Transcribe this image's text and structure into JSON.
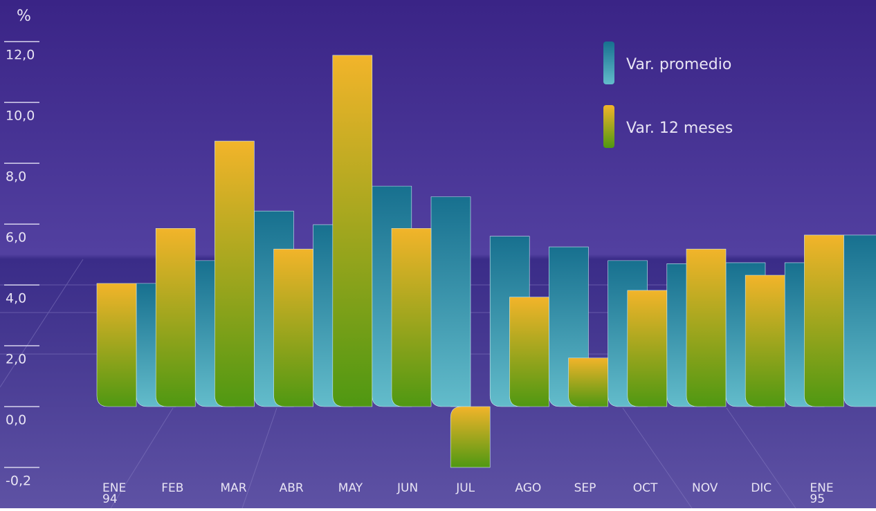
{
  "chart_data": {
    "type": "bar",
    "y_label": "%",
    "categories": [
      "ENE 94",
      "FEB",
      "MAR",
      "ABR",
      "MAY",
      "JUN",
      "JUL",
      "AGO",
      "SEP",
      "OCT",
      "NOV",
      "DIC",
      "ENE 95"
    ],
    "series": [
      {
        "name": "Var. 12 meses",
        "color": "#f2b42a",
        "values": [
          4.05,
          5.86,
          8.73,
          5.18,
          11.55,
          5.86,
          -0.2,
          3.6,
          1.6,
          3.82,
          5.18,
          4.32,
          5.64
        ]
      },
      {
        "name": "Var. promedio",
        "color": "#17708f",
        "values": [
          4.05,
          4.8,
          6.43,
          5.98,
          7.25,
          6.9,
          5.6,
          5.25,
          4.8,
          4.7,
          4.73,
          4.73,
          5.64
        ]
      }
    ],
    "ylim": [
      -0.2,
      12.8
    ],
    "yticks": [
      {
        "value": -0.2,
        "label": "-0,2"
      },
      {
        "value": 0,
        "label": "0,0"
      },
      {
        "value": 2,
        "label": "2,0"
      },
      {
        "value": 4,
        "label": "4,0"
      },
      {
        "value": 6,
        "label": "6,0"
      },
      {
        "value": 8,
        "label": "8,0"
      },
      {
        "value": 10,
        "label": "10,0"
      },
      {
        "value": 12,
        "label": "12,0"
      }
    ],
    "legend": "top-right"
  }
}
